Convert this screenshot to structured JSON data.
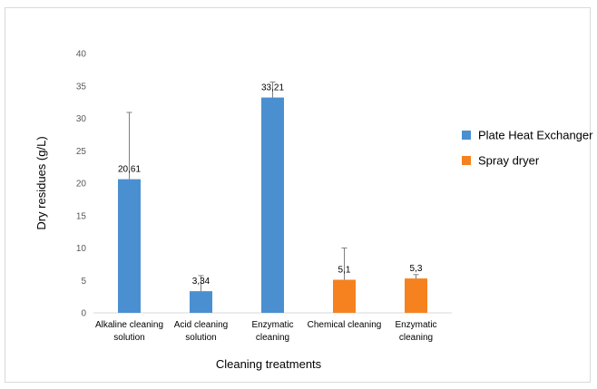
{
  "chart_data": {
    "type": "bar",
    "xlabel": "Cleaning treatments",
    "ylabel": "Dry residues (g/L)",
    "ylim": [
      0,
      40
    ],
    "yticks": [
      0,
      5,
      10,
      15,
      20,
      25,
      30,
      35,
      40
    ],
    "grid": false,
    "legend_position": "right",
    "categories": [
      [
        "Alkaline cleaning",
        "solution"
      ],
      [
        "Acid cleaning",
        "solution"
      ],
      [
        "Enzymatic",
        "cleaning"
      ],
      [
        "Chemical cleaning"
      ],
      [
        "Enzymatic",
        "cleaning"
      ]
    ],
    "values": [
      20.61,
      3.34,
      33.21,
      5.1,
      5.3
    ],
    "data_labels": [
      "20,61",
      "3,34",
      "33,21",
      "5,1",
      "5,3"
    ],
    "error_plus": [
      10.3,
      2.4,
      2.4,
      4.9,
      0.6
    ],
    "bar_series": [
      0,
      0,
      0,
      1,
      1
    ],
    "series": [
      {
        "name": "Plate Heat Exchanger",
        "color": "#4a90d0"
      },
      {
        "name": "Spray dryer",
        "color": "#f5821f"
      }
    ]
  }
}
